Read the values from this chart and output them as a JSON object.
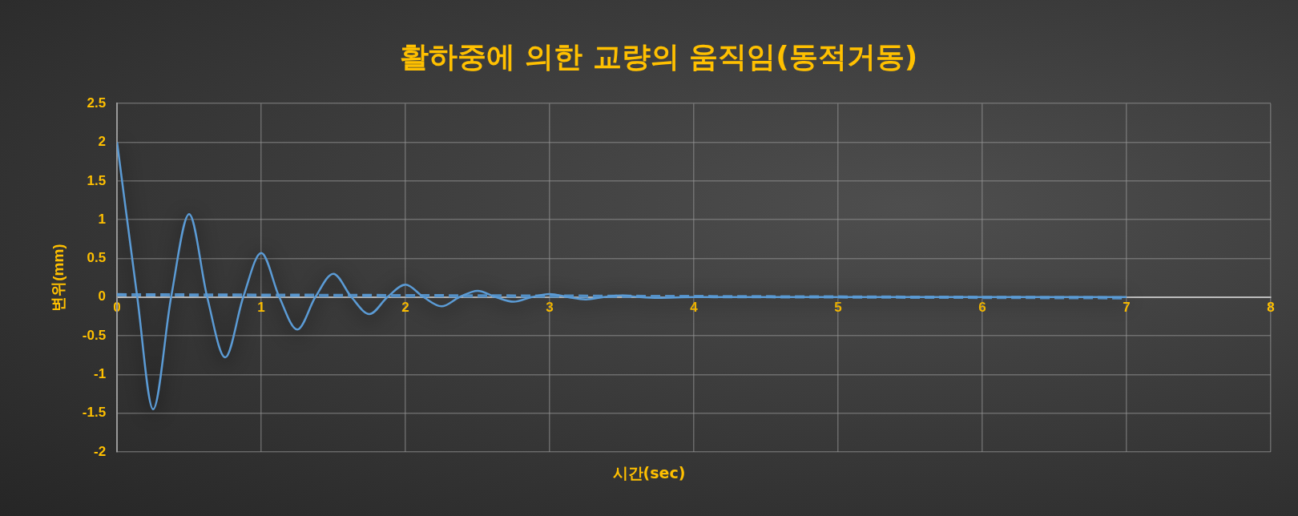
{
  "chart_data": {
    "type": "line",
    "title": "활하중에 의한 교량의 움직임(동적거동)",
    "xlabel": "시간(sec)",
    "ylabel": "변위(mm)",
    "xlim": [
      0,
      8
    ],
    "xticks": [
      0,
      1,
      2,
      3,
      4,
      5,
      6,
      7,
      8
    ],
    "ylim": [
      -2,
      2.5
    ],
    "yticks": [
      -2,
      -1.5,
      -1,
      -0.5,
      0,
      0.5,
      1,
      1.5,
      2,
      2.5
    ],
    "grid": true,
    "legend": false,
    "marker": "none",
    "series": [
      {
        "color": "#5b9bd5",
        "line_style": "solid",
        "x": [
          0,
          0.14,
          0.25,
          0.375,
          0.5,
          0.625,
          0.75,
          0.875,
          1,
          1.125,
          1.25,
          1.375,
          1.5,
          1.625,
          1.75,
          1.875,
          2,
          2.125,
          2.25,
          2.375,
          2.5,
          2.625,
          2.75,
          2.875,
          3,
          3.125,
          3.25,
          3.375,
          3.5,
          3.625,
          3.75,
          4,
          5,
          6,
          7
        ],
        "values": [
          2,
          0,
          -1.45,
          0,
          1.07,
          0,
          -0.78,
          0,
          0.57,
          0,
          -0.42,
          0,
          0.3,
          0,
          -0.22,
          0,
          0.16,
          0,
          -0.12,
          0,
          0.08,
          0,
          -0.06,
          0,
          0.04,
          0,
          -0.03,
          0,
          0.02,
          0,
          -0.01,
          0,
          0,
          0,
          0
        ]
      },
      {
        "color": "#5b9bd5",
        "line_style": "dashed",
        "x": [
          0,
          7
        ],
        "values": [
          0.03,
          -0.01
        ]
      }
    ]
  }
}
